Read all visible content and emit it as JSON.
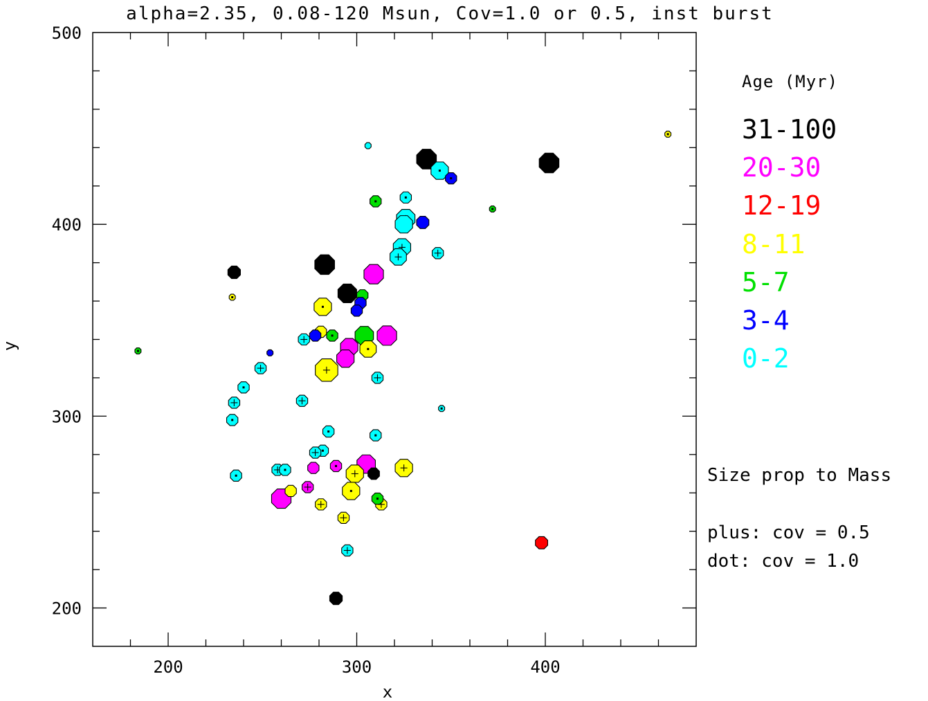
{
  "chart_data": {
    "type": "scatter",
    "title": "alpha=2.35, 0.08-120 Msun, Cov=1.0 or 0.5, inst burst",
    "xlabel": "x",
    "ylabel": "y",
    "xlim": [
      160,
      480
    ],
    "ylim": [
      180,
      500
    ],
    "x_ticks": [
      200,
      300,
      400
    ],
    "y_ticks": [
      200,
      300,
      400,
      500
    ],
    "grid": false,
    "legend": {
      "title": "Age (Myr)",
      "entries": [
        {
          "label": "31-100",
          "color": "#000000"
        },
        {
          "label": "20-30",
          "color": "#ff00ff"
        },
        {
          "label": "12-19",
          "color": "#ff0000"
        },
        {
          "label": "8-11",
          "color": "#ffff00"
        },
        {
          "label": "5-7",
          "color": "#00e000"
        },
        {
          "label": "3-4",
          "color": "#0000ff"
        },
        {
          "label": "0-2",
          "color": "#00ffff"
        }
      ]
    },
    "notes": [
      "Size prop to Mass",
      "plus: cov = 0.5",
      "dot: cov = 1.0"
    ],
    "points": [
      {
        "x": 337,
        "y": 434,
        "age": "31-100",
        "size": 2.0,
        "marker": "none"
      },
      {
        "x": 402,
        "y": 432,
        "age": "31-100",
        "size": 2.0,
        "marker": "none"
      },
      {
        "x": 283,
        "y": 379,
        "age": "31-100",
        "size": 2.0,
        "marker": "none"
      },
      {
        "x": 295,
        "y": 364,
        "age": "31-100",
        "size": 1.9,
        "marker": "none"
      },
      {
        "x": 235,
        "y": 375,
        "age": "31-100",
        "size": 1.3,
        "marker": "none"
      },
      {
        "x": 309,
        "y": 270,
        "age": "31-100",
        "size": 1.2,
        "marker": "none"
      },
      {
        "x": 289,
        "y": 205,
        "age": "31-100",
        "size": 1.3,
        "marker": "none"
      },
      {
        "x": 309,
        "y": 374,
        "age": "20-30",
        "size": 1.9,
        "marker": "none"
      },
      {
        "x": 316,
        "y": 342,
        "age": "20-30",
        "size": 1.9,
        "marker": "none"
      },
      {
        "x": 296,
        "y": 336,
        "age": "20-30",
        "size": 1.7,
        "marker": "none"
      },
      {
        "x": 294,
        "y": 330,
        "age": "20-30",
        "size": 1.7,
        "marker": "none"
      },
      {
        "x": 305,
        "y": 275,
        "age": "20-30",
        "size": 1.8,
        "marker": "none"
      },
      {
        "x": 277,
        "y": 273,
        "age": "20-30",
        "size": 1.1,
        "marker": "none"
      },
      {
        "x": 289,
        "y": 274,
        "age": "20-30",
        "size": 1.1,
        "marker": "dot"
      },
      {
        "x": 274,
        "y": 263,
        "age": "20-30",
        "size": 1.1,
        "marker": "plus"
      },
      {
        "x": 260,
        "y": 257,
        "age": "20-30",
        "size": 1.9,
        "marker": "none"
      },
      {
        "x": 398,
        "y": 234,
        "age": "12-19",
        "size": 1.2,
        "marker": "none"
      },
      {
        "x": 465,
        "y": 447,
        "age": "8-11",
        "size": 0.6,
        "marker": "dot"
      },
      {
        "x": 234,
        "y": 362,
        "age": "8-11",
        "size": 0.6,
        "marker": "dot"
      },
      {
        "x": 282,
        "y": 357,
        "age": "8-11",
        "size": 1.7,
        "marker": "dot"
      },
      {
        "x": 281,
        "y": 344,
        "age": "8-11",
        "size": 1.1,
        "marker": "none"
      },
      {
        "x": 306,
        "y": 335,
        "age": "8-11",
        "size": 1.6,
        "marker": "dot"
      },
      {
        "x": 284,
        "y": 324,
        "age": "8-11",
        "size": 2.2,
        "marker": "plus"
      },
      {
        "x": 325,
        "y": 273,
        "age": "8-11",
        "size": 1.7,
        "marker": "plus"
      },
      {
        "x": 299,
        "y": 270,
        "age": "8-11",
        "size": 1.7,
        "marker": "plus"
      },
      {
        "x": 297,
        "y": 261,
        "age": "8-11",
        "size": 1.7,
        "marker": "dot"
      },
      {
        "x": 265,
        "y": 261,
        "age": "8-11",
        "size": 1.1,
        "marker": "none"
      },
      {
        "x": 281,
        "y": 254,
        "age": "8-11",
        "size": 1.1,
        "marker": "plus"
      },
      {
        "x": 313,
        "y": 254,
        "age": "8-11",
        "size": 1.1,
        "marker": "plus"
      },
      {
        "x": 293,
        "y": 247,
        "age": "8-11",
        "size": 1.1,
        "marker": "plus"
      },
      {
        "x": 372,
        "y": 408,
        "age": "5-7",
        "size": 0.6,
        "marker": "dot"
      },
      {
        "x": 310,
        "y": 412,
        "age": "5-7",
        "size": 1.1,
        "marker": "dot"
      },
      {
        "x": 303,
        "y": 363,
        "age": "5-7",
        "size": 1.1,
        "marker": "none"
      },
      {
        "x": 287,
        "y": 342,
        "age": "5-7",
        "size": 1.1,
        "marker": "dot"
      },
      {
        "x": 304,
        "y": 342,
        "age": "5-7",
        "size": 1.8,
        "marker": "none"
      },
      {
        "x": 184,
        "y": 334,
        "age": "5-7",
        "size": 0.6,
        "marker": "dot"
      },
      {
        "x": 311,
        "y": 257,
        "age": "5-7",
        "size": 1.1,
        "marker": "dot"
      },
      {
        "x": 350,
        "y": 424,
        "age": "3-4",
        "size": 1.1,
        "marker": "dot"
      },
      {
        "x": 335,
        "y": 401,
        "age": "3-4",
        "size": 1.2,
        "marker": "none"
      },
      {
        "x": 302,
        "y": 359,
        "age": "3-4",
        "size": 1.1,
        "marker": "none"
      },
      {
        "x": 300,
        "y": 355,
        "age": "3-4",
        "size": 1.1,
        "marker": "none"
      },
      {
        "x": 278,
        "y": 342,
        "age": "3-4",
        "size": 1.1,
        "marker": "none"
      },
      {
        "x": 254,
        "y": 333,
        "age": "3-4",
        "size": 0.6,
        "marker": "none"
      },
      {
        "x": 306,
        "y": 441,
        "age": "0-2",
        "size": 0.6,
        "marker": "none"
      },
      {
        "x": 344,
        "y": 428,
        "age": "0-2",
        "size": 1.7,
        "marker": "dot"
      },
      {
        "x": 326,
        "y": 414,
        "age": "0-2",
        "size": 1.1,
        "marker": "dot"
      },
      {
        "x": 326,
        "y": 403,
        "age": "0-2",
        "size": 1.8,
        "marker": "plus"
      },
      {
        "x": 325,
        "y": 400,
        "age": "0-2",
        "size": 1.7,
        "marker": "none"
      },
      {
        "x": 324,
        "y": 388,
        "age": "0-2",
        "size": 1.7,
        "marker": "plus"
      },
      {
        "x": 322,
        "y": 383,
        "age": "0-2",
        "size": 1.6,
        "marker": "plus"
      },
      {
        "x": 343,
        "y": 385,
        "age": "0-2",
        "size": 1.1,
        "marker": "plus"
      },
      {
        "x": 272,
        "y": 340,
        "age": "0-2",
        "size": 1.1,
        "marker": "plus"
      },
      {
        "x": 249,
        "y": 325,
        "age": "0-2",
        "size": 1.1,
        "marker": "plus"
      },
      {
        "x": 311,
        "y": 320,
        "age": "0-2",
        "size": 1.1,
        "marker": "plus"
      },
      {
        "x": 240,
        "y": 315,
        "age": "0-2",
        "size": 1.1,
        "marker": "dot"
      },
      {
        "x": 235,
        "y": 307,
        "age": "0-2",
        "size": 1.1,
        "marker": "plus"
      },
      {
        "x": 271,
        "y": 308,
        "age": "0-2",
        "size": 1.1,
        "marker": "plus"
      },
      {
        "x": 345,
        "y": 304,
        "age": "0-2",
        "size": 0.6,
        "marker": "dot"
      },
      {
        "x": 234,
        "y": 298,
        "age": "0-2",
        "size": 1.1,
        "marker": "dot"
      },
      {
        "x": 285,
        "y": 292,
        "age": "0-2",
        "size": 1.1,
        "marker": "dot"
      },
      {
        "x": 310,
        "y": 290,
        "age": "0-2",
        "size": 1.1,
        "marker": "dot"
      },
      {
        "x": 282,
        "y": 282,
        "age": "0-2",
        "size": 1.1,
        "marker": "dot"
      },
      {
        "x": 278,
        "y": 281,
        "age": "0-2",
        "size": 1.1,
        "marker": "plus"
      },
      {
        "x": 258,
        "y": 272,
        "age": "0-2",
        "size": 1.1,
        "marker": "plus"
      },
      {
        "x": 262,
        "y": 272,
        "age": "0-2",
        "size": 1.1,
        "marker": "dot"
      },
      {
        "x": 236,
        "y": 269,
        "age": "0-2",
        "size": 1.1,
        "marker": "dot"
      },
      {
        "x": 295,
        "y": 230,
        "age": "0-2",
        "size": 1.1,
        "marker": "plus"
      }
    ]
  }
}
